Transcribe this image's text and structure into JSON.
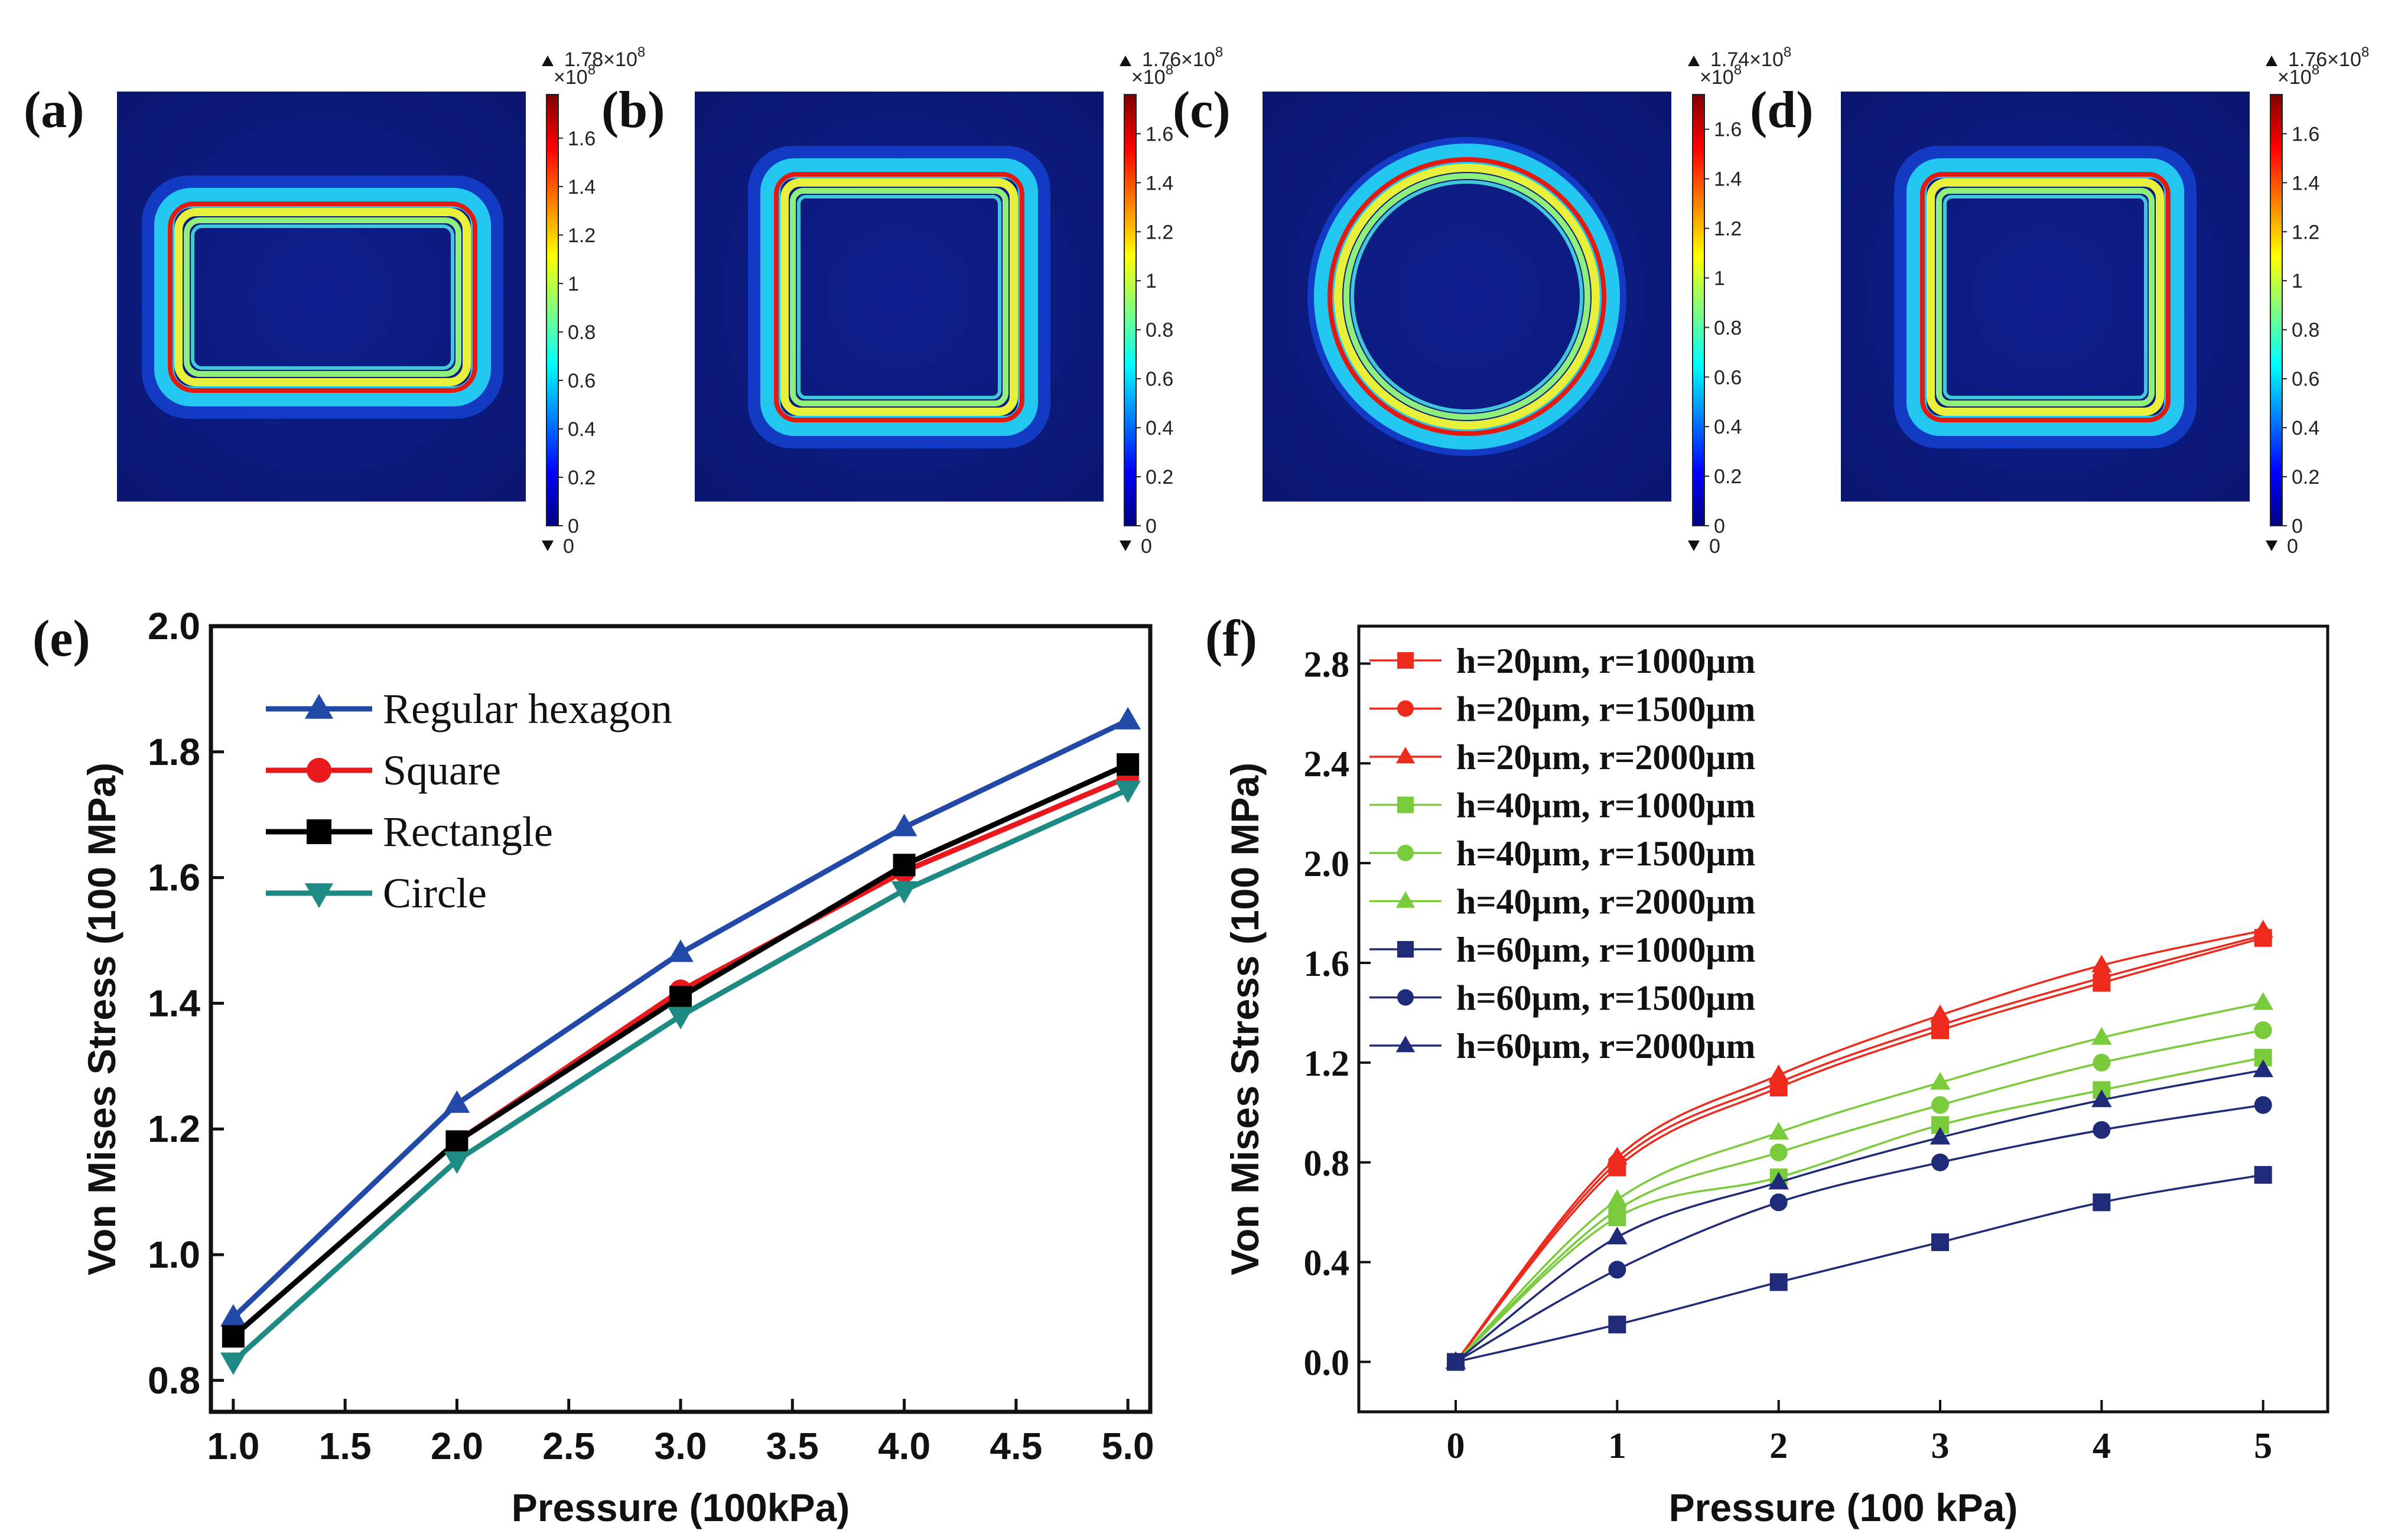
{
  "colormap_panels": [
    {
      "label": "(a)",
      "shape": "rectangle",
      "max_label": "1.78×10",
      "max_exp": "8",
      "scale_label": "×10",
      "scale_exp": "8",
      "min_label": "0",
      "ticks": [
        "1.6",
        "1.4",
        "1.2",
        "1",
        "0.8",
        "0.6",
        "0.4",
        "0.2",
        "0"
      ]
    },
    {
      "label": "(b)",
      "shape": "square",
      "max_label": "1.76×10",
      "max_exp": "8",
      "scale_label": "×10",
      "scale_exp": "8",
      "min_label": "0",
      "ticks": [
        "1.6",
        "1.4",
        "1.2",
        "1",
        "0.8",
        "0.6",
        "0.4",
        "0.2",
        "0"
      ]
    },
    {
      "label": "(c)",
      "shape": "circle",
      "max_label": "1.74×10",
      "max_exp": "8",
      "scale_label": "×10",
      "scale_exp": "8",
      "min_label": "0",
      "ticks": [
        "1.6",
        "1.4",
        "1.2",
        "1",
        "0.8",
        "0.6",
        "0.4",
        "0.2",
        "0"
      ]
    },
    {
      "label": "(d)",
      "shape": "square",
      "max_label": "1.76×10",
      "max_exp": "8",
      "scale_label": "×10",
      "scale_exp": "8",
      "min_label": "0",
      "ticks": [
        "1.6",
        "1.4",
        "1.2",
        "1",
        "0.8",
        "0.6",
        "0.4",
        "0.2",
        "0"
      ]
    }
  ],
  "chart_data": [
    {
      "label": "(e)",
      "type": "line",
      "xlabel": "Pressure (100kPa)",
      "ylabel": "Von Mises Stress (100 MPa)",
      "xlim": [
        0.9,
        5.1
      ],
      "ylim": [
        0.75,
        2.0
      ],
      "xticks": [
        1.0,
        1.5,
        2.0,
        2.5,
        3.0,
        3.5,
        4.0,
        4.5,
        5.0
      ],
      "xtick_labels": [
        "1.0",
        "1.5",
        "2.0",
        "2.5",
        "3.0",
        "3.5",
        "4.0",
        "4.5",
        "5.0"
      ],
      "yticks": [
        0.8,
        1.0,
        1.2,
        1.4,
        1.6,
        1.8,
        2.0
      ],
      "ytick_labels": [
        "0.8",
        "1.0",
        "1.2",
        "1.4",
        "1.6",
        "1.8",
        "2.0"
      ],
      "legend_position": "top-left",
      "x": [
        1,
        2,
        3,
        4,
        5
      ],
      "series": [
        {
          "name": "Regular hexagon",
          "color": "#2249a8",
          "marker": "triangle-up",
          "values": [
            0.9,
            1.24,
            1.48,
            1.68,
            1.85
          ]
        },
        {
          "name": "Square",
          "color": "#e8181c",
          "marker": "circle",
          "values": [
            0.87,
            1.18,
            1.42,
            1.61,
            1.76
          ]
        },
        {
          "name": "Rectangle",
          "color": "#000000",
          "marker": "square",
          "values": [
            0.87,
            1.18,
            1.41,
            1.62,
            1.78
          ]
        },
        {
          "name": "Circle",
          "color": "#1e8a84",
          "marker": "triangle-down",
          "values": [
            0.83,
            1.15,
            1.38,
            1.58,
            1.74
          ]
        }
      ]
    },
    {
      "label": "(f)",
      "type": "line",
      "xlabel": "Pressure  (100 kPa)",
      "ylabel": "Von Mises Stress (100 MPa)",
      "xlim": [
        -0.6,
        5.4
      ],
      "ylim": [
        -0.2,
        2.95
      ],
      "xticks": [
        0,
        1,
        2,
        3,
        4,
        5
      ],
      "xtick_labels": [
        "0",
        "1",
        "2",
        "3",
        "4",
        "5"
      ],
      "yticks": [
        0.0,
        0.4,
        0.8,
        1.2,
        1.6,
        2.0,
        2.4,
        2.8
      ],
      "ytick_labels": [
        "0.0",
        "0.4",
        "0.8",
        "1.2",
        "1.6",
        "2.0",
        "2.4",
        "2.8"
      ],
      "legend_position": "top-left",
      "x": [
        0,
        1,
        2,
        3,
        4,
        5
      ],
      "series": [
        {
          "name": "h=20μm, r=1000μm",
          "color": "#ee2a1c",
          "marker": "square",
          "values": [
            0,
            0.78,
            1.1,
            1.33,
            1.52,
            1.7
          ]
        },
        {
          "name": "h=20μm, r=1500μm",
          "color": "#ee2a1c",
          "marker": "circle",
          "values": [
            0,
            0.8,
            1.12,
            1.35,
            1.54,
            1.71
          ]
        },
        {
          "name": "h=20μm, r=2000μm",
          "color": "#ee2a1c",
          "marker": "triangle-up",
          "values": [
            0,
            0.82,
            1.15,
            1.39,
            1.59,
            1.73
          ]
        },
        {
          "name": "h=40μm, r=1000μm",
          "color": "#7acb3c",
          "marker": "square",
          "values": [
            0,
            0.58,
            0.74,
            0.95,
            1.09,
            1.22
          ]
        },
        {
          "name": "h=40μm, r=1500μm",
          "color": "#7acb3c",
          "marker": "circle",
          "values": [
            0,
            0.61,
            0.84,
            1.03,
            1.2,
            1.33
          ]
        },
        {
          "name": "h=40μm, r=2000μm",
          "color": "#7acb3c",
          "marker": "triangle-up",
          "values": [
            0,
            0.65,
            0.92,
            1.12,
            1.3,
            1.44
          ]
        },
        {
          "name": "h=60μm, r=1000μm",
          "color": "#1f2a78",
          "marker": "square",
          "values": [
            0,
            0.15,
            0.32,
            0.48,
            0.64,
            0.75
          ]
        },
        {
          "name": "h=60μm, r=1500μm",
          "color": "#1f2a78",
          "marker": "circle",
          "values": [
            0,
            0.37,
            0.64,
            0.8,
            0.93,
            1.03
          ]
        },
        {
          "name": "h=60μm, r=2000μm",
          "color": "#1f2a78",
          "marker": "triangle-up",
          "values": [
            0,
            0.5,
            0.72,
            0.9,
            1.05,
            1.17
          ]
        }
      ]
    }
  ]
}
